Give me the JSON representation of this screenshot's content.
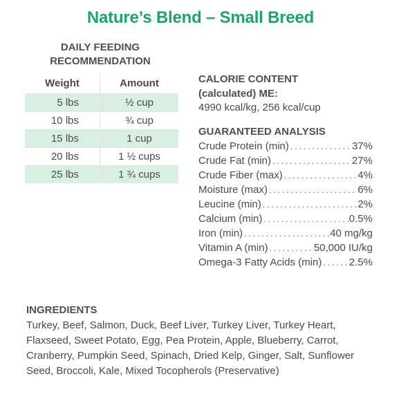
{
  "title": "Nature’s Blend – Small Breed",
  "feeding": {
    "heading_line1": "DAILY FEEDING",
    "heading_line2": "RECOMMENDATION",
    "col_weight": "Weight",
    "col_amount": "Amount",
    "rows": [
      {
        "weight": "5 lbs",
        "amount": "½ cup"
      },
      {
        "weight": "10 lbs",
        "amount": "¾ cup"
      },
      {
        "weight": "15 lbs",
        "amount": "1 cup"
      },
      {
        "weight": "20 lbs",
        "amount": "1 ½ cups"
      },
      {
        "weight": "25 lbs",
        "amount": "1 ¾ cups"
      }
    ]
  },
  "calorie": {
    "heading_line1": "CALORIE CONTENT",
    "heading_line2": "(calculated) ME:",
    "value": "4990 kcal/kg, 256 kcal/cup"
  },
  "analysis": {
    "heading": "GUARANTEED ANALYSIS",
    "items": [
      {
        "label": "Crude Protein (min)",
        "value": "37%"
      },
      {
        "label": "Crude Fat (min)",
        "value": "27%"
      },
      {
        "label": "Crude Fiber (max)",
        "value": "4%"
      },
      {
        "label": "Moisture (max)",
        "value": "6%"
      },
      {
        "label": "Leucine (min)",
        "value": "2%"
      },
      {
        "label": "Calcium (min)",
        "value": "0.5%"
      },
      {
        "label": "Iron (min)",
        "value": "40 mg/kg"
      },
      {
        "label": "Vitamin A (min)",
        "value": "50,000 IU/kg"
      },
      {
        "label": "Omega-3 Fatty Acids (min)",
        "value": "2.5%"
      }
    ]
  },
  "ingredients": {
    "heading": "INGREDIENTS",
    "text": "Turkey, Beef, Salmon, Duck, Beef Liver, Turkey Liver, Turkey Heart, Flaxseed, Sweet Potato, Egg, Pea Protein, Apple, Blueberry, Carrot, Cranberry, Pumpkin Seed, Spinach, Dried Kelp, Ginger, Salt, Sunflower Seed, Broccoli, Kale, Mixed Tocopherols (Preservative)"
  },
  "colors": {
    "title_green": "#1aa56a",
    "row_shade": "#d9efe2",
    "text": "#4a4a4a"
  }
}
